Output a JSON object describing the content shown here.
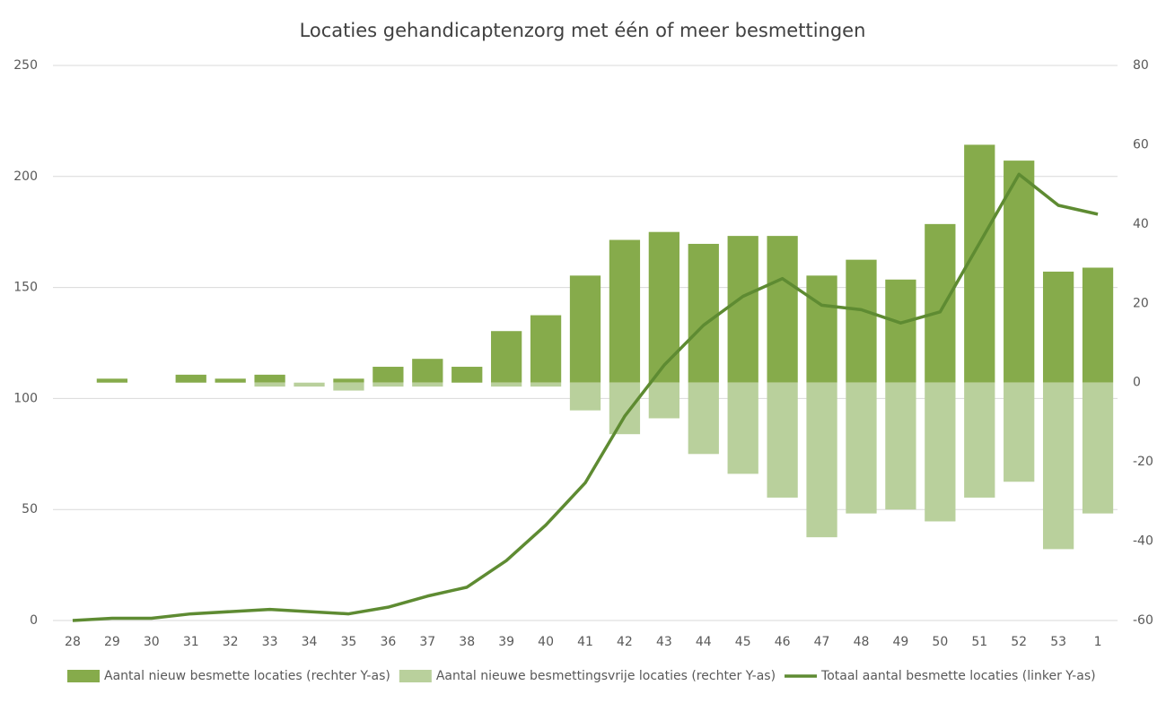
{
  "chart_data": {
    "type": "bar",
    "title": "Locaties gehandicaptenzorg met één of meer besmettingen",
    "categories": [
      "28",
      "29",
      "30",
      "31",
      "32",
      "33",
      "34",
      "35",
      "36",
      "37",
      "38",
      "39",
      "40",
      "41",
      "42",
      "43",
      "44",
      "45",
      "46",
      "47",
      "48",
      "49",
      "50",
      "51",
      "52",
      "53",
      "1"
    ],
    "ylim": [
      0,
      250
    ],
    "yticks": [
      0,
      50,
      100,
      150,
      200,
      250
    ],
    "y2lim": [
      -60,
      80
    ],
    "y2ticks": [
      -60,
      -40,
      -20,
      0,
      20,
      40,
      60,
      80
    ],
    "grid": true,
    "legend": "bottom",
    "series": [
      {
        "name": "Aantal nieuw besmette locaties (rechter Y-as)",
        "type": "bar",
        "axis": "y2",
        "color": "#86ab4b",
        "values": [
          0,
          1,
          0,
          2,
          1,
          2,
          0,
          1,
          4,
          6,
          4,
          13,
          17,
          27,
          36,
          38,
          35,
          37,
          37,
          27,
          31,
          26,
          40,
          60,
          56,
          28,
          29
        ]
      },
      {
        "name": "Aantal nieuwe besmettingsvrije locaties (rechter Y-as)",
        "type": "bar",
        "axis": "y2",
        "color": "#b9d09c",
        "values": [
          0,
          0,
          0,
          0,
          0,
          -1,
          -1,
          -2,
          -1,
          -1,
          0,
          -1,
          -1,
          -7,
          -13,
          -9,
          -18,
          -23,
          -29,
          -39,
          -33,
          -32,
          -35,
          -29,
          -25,
          -42,
          -33
        ]
      },
      {
        "name": "Totaal aantal besmette locaties (linker Y-as)",
        "type": "line",
        "axis": "y",
        "color": "#5e8b32",
        "values": [
          0,
          1,
          1,
          3,
          4,
          5,
          4,
          3,
          6,
          11,
          15,
          27,
          43,
          62,
          92,
          115,
          133,
          146,
          154,
          142,
          140,
          134,
          139,
          170,
          201,
          187,
          183
        ]
      }
    ]
  }
}
